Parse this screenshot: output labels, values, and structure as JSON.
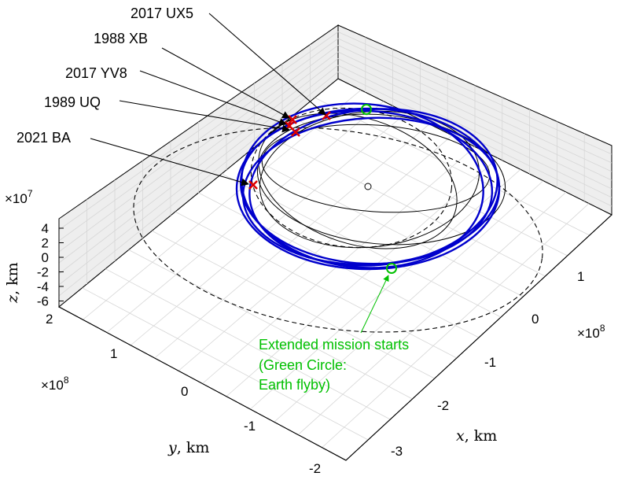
{
  "colors": {
    "orbit_blue": "#0000cc",
    "marker_red": "#dd0000",
    "marker_green": "#00c000",
    "arrow_black": "#000000",
    "grid": "#d9d9d9",
    "pane_shade": "#e9e9e9"
  },
  "chart_data": {
    "type": "3d-line",
    "view": "3d-oblique",
    "grid": true,
    "axes": {
      "x": {
        "label_var": "x",
        "label_unit": ", km",
        "ticks": [
          1,
          0,
          -1,
          -2,
          -3
        ],
        "multiplier": "×10",
        "multiplier_exp": "8",
        "range": [
          -3.2,
          1.6
        ]
      },
      "y": {
        "label_var": "y",
        "label_unit": ", km",
        "ticks": [
          2,
          1,
          0,
          -1,
          -2
        ],
        "multiplier": "×10",
        "multiplier_exp": "8",
        "range": [
          -2.2,
          2.2
        ]
      },
      "z": {
        "label_var": "z",
        "label_unit": ", km",
        "ticks": [
          4,
          2,
          0,
          -2,
          -4,
          -6
        ],
        "multiplier": "×10",
        "multiplier_exp": "7",
        "range": [
          -6.5,
          4.5
        ]
      }
    },
    "annotations": [
      {
        "text": "2017 UX5"
      },
      {
        "text": "1988 XB"
      },
      {
        "text": "2017 YV8"
      },
      {
        "text": "1989 UQ"
      },
      {
        "text": "2021 BA"
      }
    ],
    "note": {
      "lines": [
        "Extended mission starts",
        "(Green Circle:",
        "Earth flyby)"
      ]
    },
    "series": [
      {
        "kind": "asteroid-orbit",
        "style": "solid-black"
      },
      {
        "kind": "planet-orbit",
        "style": "dashed-black"
      },
      {
        "kind": "spacecraft-trajectory",
        "style": "solid-blue"
      }
    ],
    "markers": [
      {
        "kind": "sun",
        "symbol": "open-circle"
      },
      {
        "kind": "encounter",
        "symbol": "red-cross",
        "count": 5
      },
      {
        "kind": "earth-flyby",
        "symbol": "green-circle",
        "count": 2
      }
    ]
  }
}
